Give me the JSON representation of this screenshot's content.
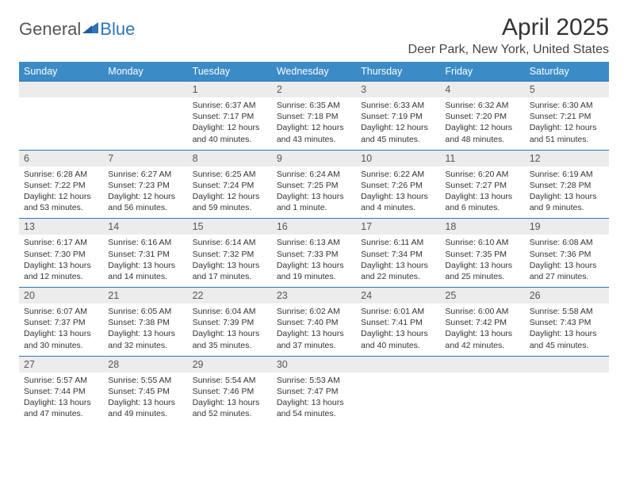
{
  "logo": {
    "text1": "General",
    "text2": "Blue"
  },
  "title": "April 2025",
  "location": "Deer Park, New York, United States",
  "colors": {
    "header_bg": "#3b8bc7",
    "header_fg": "#ffffff",
    "daynum_bg": "#ececec",
    "daynum_border": "#2e75b6",
    "logo_accent": "#2e75b6",
    "page_bg": "#ffffff"
  },
  "weekdays": [
    "Sunday",
    "Monday",
    "Tuesday",
    "Wednesday",
    "Thursday",
    "Friday",
    "Saturday"
  ],
  "weeks": [
    [
      null,
      null,
      {
        "n": "1",
        "sr": "6:37 AM",
        "ss": "7:17 PM",
        "dl": "12 hours and 40 minutes."
      },
      {
        "n": "2",
        "sr": "6:35 AM",
        "ss": "7:18 PM",
        "dl": "12 hours and 43 minutes."
      },
      {
        "n": "3",
        "sr": "6:33 AM",
        "ss": "7:19 PM",
        "dl": "12 hours and 45 minutes."
      },
      {
        "n": "4",
        "sr": "6:32 AM",
        "ss": "7:20 PM",
        "dl": "12 hours and 48 minutes."
      },
      {
        "n": "5",
        "sr": "6:30 AM",
        "ss": "7:21 PM",
        "dl": "12 hours and 51 minutes."
      }
    ],
    [
      {
        "n": "6",
        "sr": "6:28 AM",
        "ss": "7:22 PM",
        "dl": "12 hours and 53 minutes."
      },
      {
        "n": "7",
        "sr": "6:27 AM",
        "ss": "7:23 PM",
        "dl": "12 hours and 56 minutes."
      },
      {
        "n": "8",
        "sr": "6:25 AM",
        "ss": "7:24 PM",
        "dl": "12 hours and 59 minutes."
      },
      {
        "n": "9",
        "sr": "6:24 AM",
        "ss": "7:25 PM",
        "dl": "13 hours and 1 minute."
      },
      {
        "n": "10",
        "sr": "6:22 AM",
        "ss": "7:26 PM",
        "dl": "13 hours and 4 minutes."
      },
      {
        "n": "11",
        "sr": "6:20 AM",
        "ss": "7:27 PM",
        "dl": "13 hours and 6 minutes."
      },
      {
        "n": "12",
        "sr": "6:19 AM",
        "ss": "7:28 PM",
        "dl": "13 hours and 9 minutes."
      }
    ],
    [
      {
        "n": "13",
        "sr": "6:17 AM",
        "ss": "7:30 PM",
        "dl": "13 hours and 12 minutes."
      },
      {
        "n": "14",
        "sr": "6:16 AM",
        "ss": "7:31 PM",
        "dl": "13 hours and 14 minutes."
      },
      {
        "n": "15",
        "sr": "6:14 AM",
        "ss": "7:32 PM",
        "dl": "13 hours and 17 minutes."
      },
      {
        "n": "16",
        "sr": "6:13 AM",
        "ss": "7:33 PM",
        "dl": "13 hours and 19 minutes."
      },
      {
        "n": "17",
        "sr": "6:11 AM",
        "ss": "7:34 PM",
        "dl": "13 hours and 22 minutes."
      },
      {
        "n": "18",
        "sr": "6:10 AM",
        "ss": "7:35 PM",
        "dl": "13 hours and 25 minutes."
      },
      {
        "n": "19",
        "sr": "6:08 AM",
        "ss": "7:36 PM",
        "dl": "13 hours and 27 minutes."
      }
    ],
    [
      {
        "n": "20",
        "sr": "6:07 AM",
        "ss": "7:37 PM",
        "dl": "13 hours and 30 minutes."
      },
      {
        "n": "21",
        "sr": "6:05 AM",
        "ss": "7:38 PM",
        "dl": "13 hours and 32 minutes."
      },
      {
        "n": "22",
        "sr": "6:04 AM",
        "ss": "7:39 PM",
        "dl": "13 hours and 35 minutes."
      },
      {
        "n": "23",
        "sr": "6:02 AM",
        "ss": "7:40 PM",
        "dl": "13 hours and 37 minutes."
      },
      {
        "n": "24",
        "sr": "6:01 AM",
        "ss": "7:41 PM",
        "dl": "13 hours and 40 minutes."
      },
      {
        "n": "25",
        "sr": "6:00 AM",
        "ss": "7:42 PM",
        "dl": "13 hours and 42 minutes."
      },
      {
        "n": "26",
        "sr": "5:58 AM",
        "ss": "7:43 PM",
        "dl": "13 hours and 45 minutes."
      }
    ],
    [
      {
        "n": "27",
        "sr": "5:57 AM",
        "ss": "7:44 PM",
        "dl": "13 hours and 47 minutes."
      },
      {
        "n": "28",
        "sr": "5:55 AM",
        "ss": "7:45 PM",
        "dl": "13 hours and 49 minutes."
      },
      {
        "n": "29",
        "sr": "5:54 AM",
        "ss": "7:46 PM",
        "dl": "13 hours and 52 minutes."
      },
      {
        "n": "30",
        "sr": "5:53 AM",
        "ss": "7:47 PM",
        "dl": "13 hours and 54 minutes."
      },
      null,
      null,
      null
    ]
  ],
  "labels": {
    "sunrise": "Sunrise:",
    "sunset": "Sunset:",
    "daylight": "Daylight:"
  }
}
